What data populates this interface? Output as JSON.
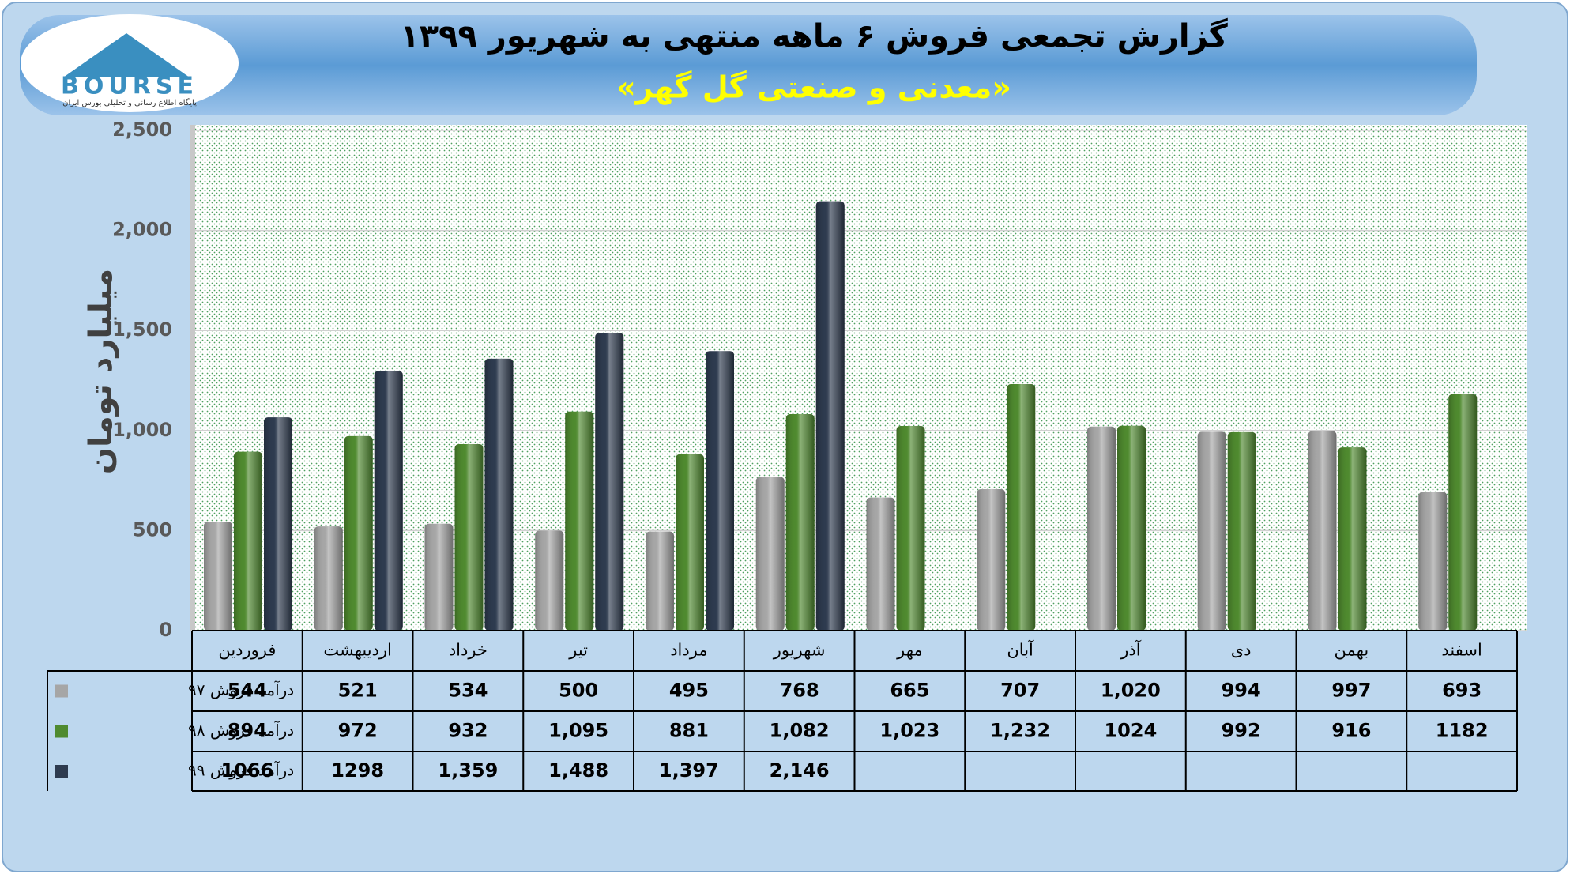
{
  "logo": {
    "name": "BOURSE",
    "tagline": "پایگاه اطلاع رسانی و تحلیلی بورس ایران"
  },
  "chart_data": {
    "type": "bar",
    "title": "گزارش تجمعی فروش ۶ ماهه منتهی به شهریور ۱۳۹۹",
    "subtitle": "«معدنی و صنعتی گل گهر»",
    "y_label": "میلیارد تومان",
    "categories": [
      "فروردین",
      "اردیبهشت",
      "خرداد",
      "تیر",
      "مرداد",
      "شهریور",
      "مهر",
      "آبان",
      "آذر",
      "دی",
      "بهمن",
      "اسفند"
    ],
    "series": [
      {
        "name": "درآمد فروش ۹۷",
        "color": "#a6a6a6",
        "values": [
          544,
          521,
          534,
          500,
          495,
          768,
          665,
          707,
          1020,
          994,
          997,
          693
        ],
        "value_labels": [
          "544",
          "521",
          "534",
          "500",
          "495",
          "768",
          "665",
          "707",
          "1,020",
          "994",
          "997",
          "693"
        ]
      },
      {
        "name": "درآمد فروش ۹۸",
        "color": "#4f8a2f",
        "values": [
          894,
          972,
          932,
          1095,
          881,
          1082,
          1023,
          1232,
          1024,
          992,
          916,
          1182
        ],
        "value_labels": [
          "894",
          "972",
          "932",
          "1,095",
          "881",
          "1,082",
          "1,023",
          "1,232",
          "1024",
          "992",
          "916",
          "1182"
        ]
      },
      {
        "name": "درآمد فروش ۹۹",
        "color": "#2e3b4f",
        "values": [
          1066,
          1298,
          1359,
          1488,
          1397,
          2146,
          null,
          null,
          null,
          null,
          null,
          null
        ],
        "value_labels": [
          "1066",
          "1298",
          "1,359",
          "1,488",
          "1,397",
          "2,146",
          null,
          null,
          null,
          null,
          null,
          null
        ]
      }
    ],
    "ylim": [
      0,
      2500
    ],
    "yticks": [
      0,
      500,
      {
        "value": 1000,
        "label": "1,000"
      },
      {
        "value": 1500,
        "label": "1,500"
      },
      {
        "value": 2000,
        "label": "2,000"
      },
      {
        "value": 2500,
        "label": "2,500"
      }
    ],
    "grid": true
  }
}
